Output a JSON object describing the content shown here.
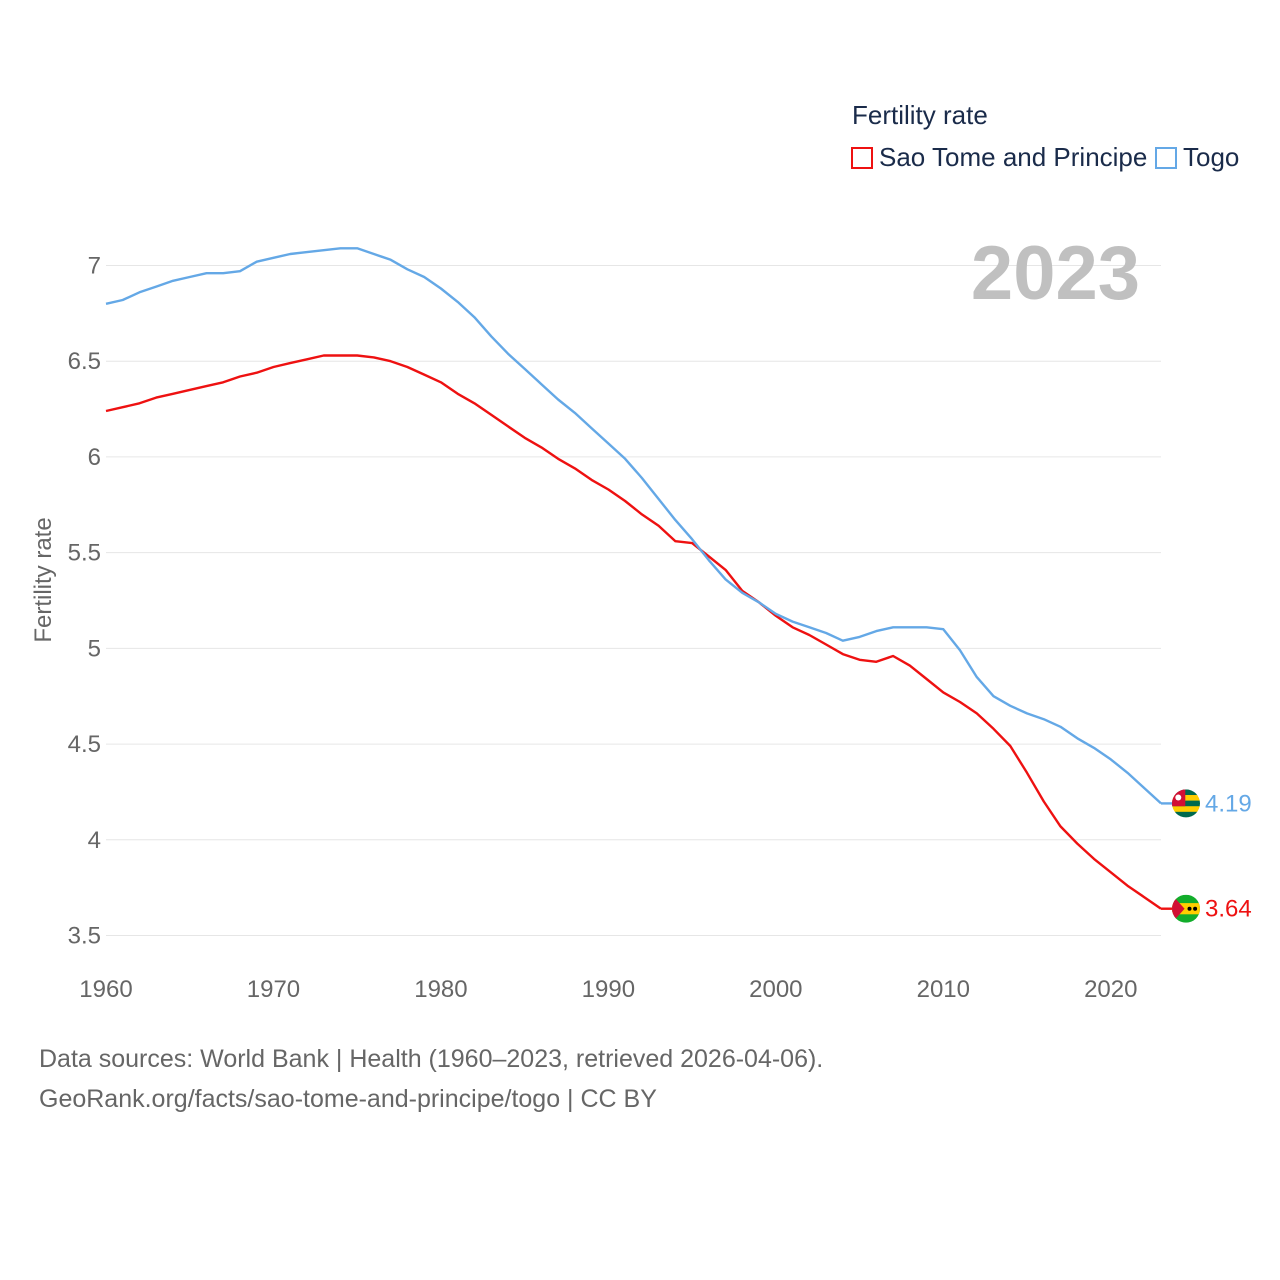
{
  "legend": {
    "title": "Fertility rate",
    "items": [
      {
        "label": "Sao Tome and Principe",
        "color": "#ee1111"
      },
      {
        "label": "Togo",
        "color": "#64a8e6"
      }
    ]
  },
  "footer": {
    "line1": "Data sources: World Bank | Health (1960–2023, retrieved 2026-04-06).",
    "line2": "GeoRank.org/facts/sao-tome-and-principe/togo | CC BY"
  },
  "chart_data": {
    "type": "line",
    "year_label": "2023",
    "ylabel": "Fertility rate",
    "xlabel": "",
    "xlim": [
      1960,
      2023
    ],
    "ylim": [
      3.4,
      7.2
    ],
    "x_ticks": [
      1960,
      1970,
      1980,
      1990,
      2000,
      2010,
      2020
    ],
    "y_ticks": [
      3.5,
      4,
      4.5,
      5,
      5.5,
      6,
      6.5,
      7
    ],
    "grid": true,
    "x": [
      1960,
      1961,
      1962,
      1963,
      1964,
      1965,
      1966,
      1967,
      1968,
      1969,
      1970,
      1971,
      1972,
      1973,
      1974,
      1975,
      1976,
      1977,
      1978,
      1979,
      1980,
      1981,
      1982,
      1983,
      1984,
      1985,
      1986,
      1987,
      1988,
      1989,
      1990,
      1991,
      1992,
      1993,
      1994,
      1995,
      1996,
      1997,
      1998,
      1999,
      2000,
      2001,
      2002,
      2003,
      2004,
      2005,
      2006,
      2007,
      2008,
      2009,
      2010,
      2011,
      2012,
      2013,
      2014,
      2015,
      2016,
      2017,
      2018,
      2019,
      2020,
      2021,
      2022,
      2023
    ],
    "series": [
      {
        "name": "Sao Tome and Principe",
        "color": "#ee1111",
        "end_label": "3.64",
        "values": [
          6.24,
          6.26,
          6.28,
          6.31,
          6.33,
          6.35,
          6.37,
          6.39,
          6.42,
          6.44,
          6.47,
          6.49,
          6.51,
          6.53,
          6.53,
          6.53,
          6.52,
          6.5,
          6.47,
          6.43,
          6.39,
          6.33,
          6.28,
          6.22,
          6.16,
          6.1,
          6.05,
          5.99,
          5.94,
          5.88,
          5.83,
          5.77,
          5.7,
          5.64,
          5.56,
          5.55,
          5.48,
          5.41,
          5.3,
          5.24,
          5.17,
          5.11,
          5.07,
          5.02,
          4.97,
          4.94,
          4.93,
          4.96,
          4.91,
          4.84,
          4.77,
          4.72,
          4.66,
          4.58,
          4.49,
          4.35,
          4.2,
          4.07,
          3.98,
          3.9,
          3.83,
          3.76,
          3.7,
          3.64
        ]
      },
      {
        "name": "Togo",
        "color": "#64a8e6",
        "end_label": "4.19",
        "values": [
          6.8,
          6.82,
          6.86,
          6.89,
          6.92,
          6.94,
          6.96,
          6.96,
          6.97,
          7.02,
          7.04,
          7.06,
          7.07,
          7.08,
          7.09,
          7.09,
          7.06,
          7.03,
          6.98,
          6.94,
          6.88,
          6.81,
          6.73,
          6.63,
          6.54,
          6.46,
          6.38,
          6.3,
          6.23,
          6.15,
          6.07,
          5.99,
          5.89,
          5.78,
          5.67,
          5.57,
          5.46,
          5.36,
          5.29,
          5.24,
          5.18,
          5.14,
          5.11,
          5.08,
          5.04,
          5.06,
          5.09,
          5.11,
          5.11,
          5.11,
          5.1,
          4.99,
          4.85,
          4.75,
          4.7,
          4.66,
          4.63,
          4.59,
          4.53,
          4.48,
          4.42,
          4.35,
          4.27,
          4.19
        ]
      }
    ]
  }
}
